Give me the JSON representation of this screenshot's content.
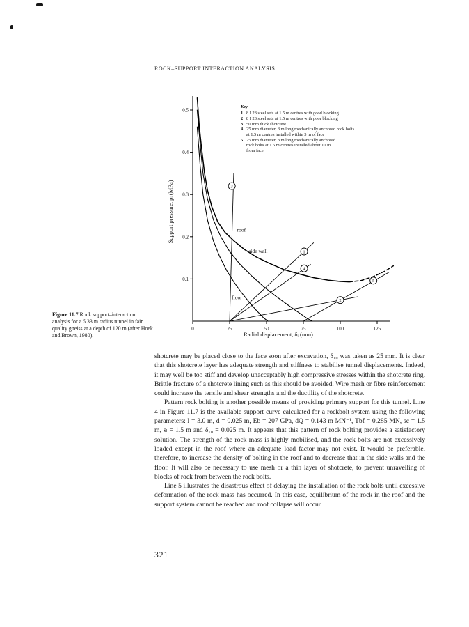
{
  "header": {
    "running_title": "ROCK–SUPPORT INTERACTION ANALYSIS"
  },
  "figure": {
    "caption_label": "Figure 11.7",
    "caption_text": "Rock support–interaction analysis for a 5.33 m radius tunnel in fair quality gneiss at a depth of 120 m (after Hoek and Brown, 1980)."
  },
  "chart_data": {
    "type": "line",
    "title": "",
    "xlabel": "Radial displacement, δᵢ (mm)",
    "ylabel": "Support pressure, pᵢ (MPa)",
    "xlim": [
      0,
      140
    ],
    "ylim": [
      0,
      0.533
    ],
    "x_ticks": [
      0,
      25,
      50,
      75,
      100,
      125
    ],
    "y_ticks": [
      0.1,
      0.2,
      0.3,
      0.4,
      0.5
    ],
    "grid": false,
    "legend_position": "upper-right-inside",
    "required_support_curves": [
      {
        "name": "roof",
        "style": "solid",
        "width": 1.5,
        "points": [
          [
            3,
            0.53
          ],
          [
            4.5,
            0.46
          ],
          [
            6,
            0.41
          ],
          [
            8,
            0.35
          ],
          [
            10,
            0.31
          ],
          [
            13,
            0.27
          ],
          [
            17,
            0.235
          ],
          [
            22,
            0.21
          ],
          [
            28,
            0.19
          ],
          [
            35,
            0.17
          ],
          [
            43,
            0.152
          ],
          [
            52,
            0.137
          ],
          [
            62,
            0.122
          ],
          [
            72,
            0.112
          ],
          [
            82,
            0.103
          ],
          [
            92,
            0.097
          ],
          [
            100,
            0.094
          ],
          [
            106,
            0.093
          ]
        ]
      },
      {
        "name": "roof-extension",
        "style": "dashed",
        "width": 1.5,
        "points": [
          [
            106,
            0.093
          ],
          [
            114,
            0.096
          ],
          [
            122,
            0.105
          ],
          [
            130,
            0.118
          ],
          [
            136,
            0.131
          ]
        ]
      },
      {
        "name": "side-wall",
        "style": "solid",
        "width": 1.1,
        "points": [
          [
            3,
            0.5
          ],
          [
            5,
            0.42
          ],
          [
            7,
            0.35
          ],
          [
            10,
            0.29
          ],
          [
            14,
            0.24
          ],
          [
            19,
            0.2
          ],
          [
            25,
            0.165
          ],
          [
            32,
            0.135
          ],
          [
            40,
            0.107
          ],
          [
            48,
            0.082
          ],
          [
            56,
            0.06
          ],
          [
            63,
            0.042
          ],
          [
            70,
            0.025
          ],
          [
            77,
            0.008
          ],
          [
            81,
            0
          ]
        ]
      },
      {
        "name": "floor",
        "style": "solid",
        "width": 1.1,
        "points": [
          [
            3,
            0.46
          ],
          [
            5,
            0.37
          ],
          [
            7,
            0.3
          ],
          [
            10,
            0.24
          ],
          [
            14,
            0.19
          ],
          [
            18,
            0.155
          ],
          [
            23,
            0.12
          ],
          [
            28,
            0.092
          ],
          [
            33,
            0.068
          ],
          [
            38,
            0.046
          ],
          [
            43,
            0.026
          ],
          [
            48,
            0.008
          ],
          [
            51,
            0
          ]
        ]
      }
    ],
    "available_support_lines": [
      {
        "id": "1",
        "points": [
          [
            25,
            0
          ],
          [
            82,
            0.186
          ]
        ]
      },
      {
        "id": "2",
        "points": [
          [
            25,
            0
          ],
          [
            112,
            0.058
          ]
        ]
      },
      {
        "id": "3",
        "points": [
          [
            25,
            0
          ],
          [
            27.8,
            0.35
          ]
        ]
      },
      {
        "id": "4",
        "points": [
          [
            25,
            0
          ],
          [
            80,
            0.135
          ]
        ]
      },
      {
        "id": "5",
        "points": [
          [
            75,
            0
          ],
          [
            133,
            0.116
          ]
        ]
      }
    ],
    "curve_labels": [
      {
        "text": "roof",
        "x": 30,
        "y": 0.212
      },
      {
        "text": "side wall",
        "x": 38,
        "y": 0.162
      },
      {
        "text": "floor",
        "x": 26.5,
        "y": 0.052
      }
    ],
    "markers": [
      {
        "label": "3",
        "x": 26.5,
        "y": 0.32
      },
      {
        "label": "1",
        "x": 75.5,
        "y": 0.165
      },
      {
        "label": "4",
        "x": 75.5,
        "y": 0.125
      },
      {
        "label": "2",
        "x": 100,
        "y": 0.05
      },
      {
        "label": "5",
        "x": 122.5,
        "y": 0.096
      }
    ],
    "key": {
      "title": "Key",
      "entries": [
        {
          "num": "1",
          "lines": [
            "8 I 23 steel sets at 1.5 m centres with good blocking"
          ]
        },
        {
          "num": "2",
          "lines": [
            "8 I 23 steel sets at 1.5 m centres with poor blocking"
          ]
        },
        {
          "num": "3",
          "lines": [
            "50 mm thick shotcrete"
          ]
        },
        {
          "num": "4",
          "lines": [
            "25 mm diameter, 3 m long mechanically anchored rock bolts",
            "at 1.5 m centres installed within 3 m of face"
          ]
        },
        {
          "num": "5",
          "lines": [
            "25 mm diameter, 3 m long mechanically anchored",
            "rock bolts at 1.5 m centres installed about 10 m",
            "from face"
          ]
        }
      ]
    }
  },
  "body": {
    "paragraphs": [
      "shotcrete may be placed close to the face soon after excavation, δ₁₀ was taken as 25 mm. It is clear that this shotcrete layer has adequate strength and stiffness to stabilise tunnel displacements. Indeed, it may well be too stiff and develop unacceptably high compressive stresses within the shotcrete ring. Brittle fracture of a shotcrete lining such as this should be avoided. Wire mesh or fibre reinforcement could increase the tensile and shear strengths and the ductility of the shotcrete.",
      "Pattern rock bolting is another possible means of providing primary support for this tunnel. Line 4 in Figure 11.7 is the available support curve calculated for a rockbolt system using the following parameters: l = 3.0 m, d = 0.025 m, Eb = 207 GPa, dQ = 0.143 m MN⁻¹, Tbf = 0.285 MN, sc = 1.5 m, sₗ = 1.5 m and δ₁₀ = 0.025 m. It appears that this pattern of rock bolting provides a satisfactory solution. The strength of the rock mass is highly mobilised, and the rock bolts are not excessively loaded except in the roof where an adequate load factor may not exist. It would be preferable, therefore, to increase the density of bolting in the roof and to decrease that in the side walls and the floor. It will also be necessary to use mesh or a thin layer of shotcrete, to prevent unravelling of blocks of rock from between the rock bolts.",
      "Line 5 illustrates the disastrous effect of delaying the installation of the rock bolts until excessive deformation of the rock mass has occurred. In this case, equilibrium of the rock in the roof and the support system cannot be reached and roof collapse will occur."
    ]
  },
  "footer": {
    "page_number": "321"
  }
}
